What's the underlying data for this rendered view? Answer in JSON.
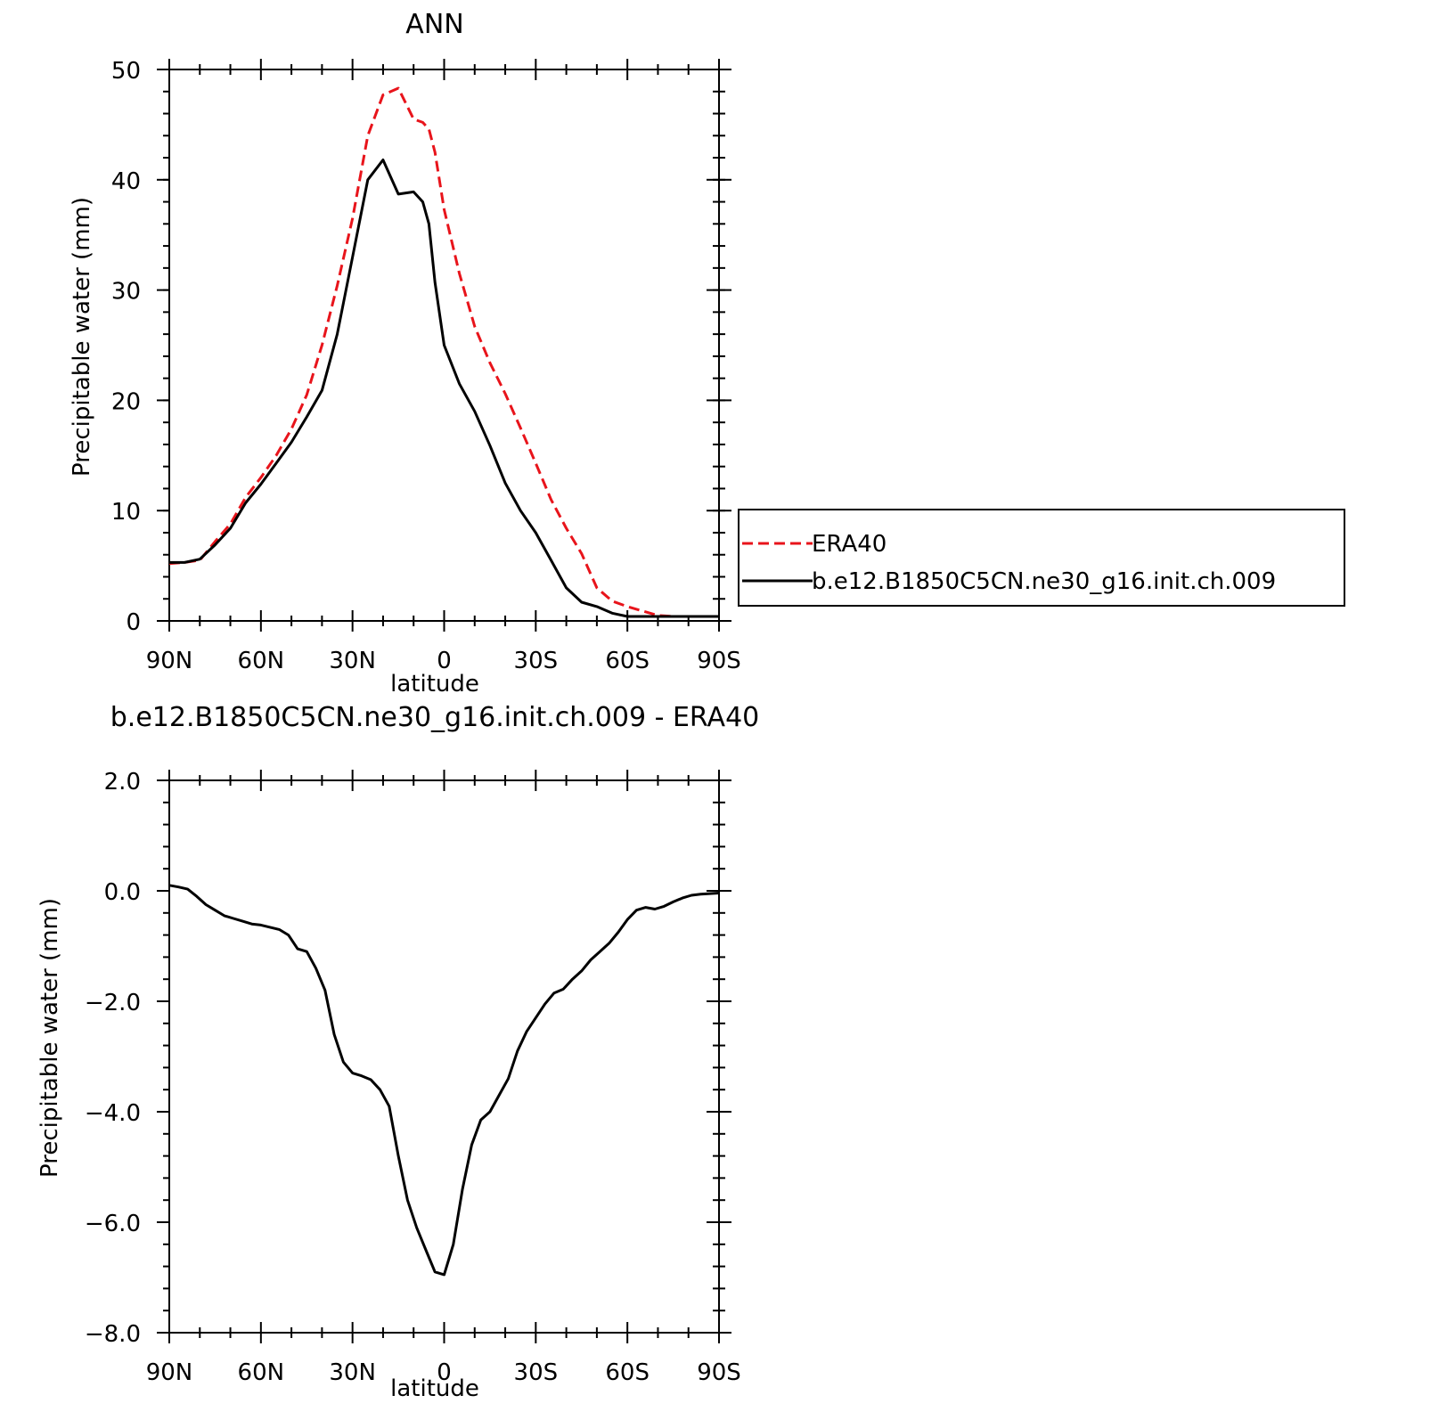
{
  "chart_data": [
    {
      "type": "line",
      "title": "ANN",
      "xlabel": "latitude",
      "ylabel": "Precipitable water (mm)",
      "xlim": [
        90,
        -90
      ],
      "ylim": [
        0,
        50
      ],
      "x_ticks": [
        90,
        60,
        30,
        0,
        -30,
        -60,
        -90
      ],
      "x_tick_labels": [
        "90N",
        "60N",
        "30N",
        "0",
        "30S",
        "60S",
        "90S"
      ],
      "y_ticks": [
        0,
        10,
        20,
        30,
        40,
        50
      ],
      "y_tick_labels": [
        "0",
        "10",
        "20",
        "30",
        "40",
        "50"
      ],
      "legend_placement": "right-outside",
      "grid": false,
      "x": [
        90,
        85,
        80,
        75,
        70,
        65,
        60,
        55,
        50,
        45,
        40,
        35,
        30,
        25,
        20,
        15,
        10,
        7,
        5,
        3,
        0,
        -5,
        -10,
        -15,
        -20,
        -25,
        -30,
        -35,
        -40,
        -45,
        -50,
        -55,
        -60,
        -65,
        -70,
        -75,
        -80,
        -85,
        -90
      ],
      "series": [
        {
          "name": "ERA40",
          "color": "#e8141b",
          "dash": "dashed",
          "values": [
            5.2,
            5.3,
            5.5,
            7.2,
            8.8,
            11.2,
            13.0,
            15.0,
            17.4,
            20.5,
            25.0,
            30.4,
            36.5,
            44.0,
            47.7,
            48.3,
            45.5,
            45.2,
            44.6,
            42.5,
            37.3,
            31.5,
            26.7,
            23.4,
            20.6,
            17.5,
            14.3,
            11.0,
            8.4,
            6.1,
            3.0,
            1.8,
            1.3,
            0.9,
            0.5,
            0.4,
            0.4,
            0.4,
            0.4
          ]
        },
        {
          "name": "b.e12.B1850C5CN.ne30_g16.init.ch.009",
          "color": "#000000",
          "dash": "solid",
          "values": [
            5.3,
            5.3,
            5.6,
            6.9,
            8.4,
            10.7,
            12.4,
            14.3,
            16.2,
            18.5,
            20.9,
            26.0,
            33.0,
            40.0,
            41.8,
            38.7,
            38.9,
            38.0,
            36.0,
            30.7,
            25.0,
            21.5,
            19.0,
            15.9,
            12.5,
            10.0,
            8.0,
            5.5,
            3.0,
            1.7,
            1.3,
            0.7,
            0.4,
            0.4,
            0.4,
            0.4,
            0.4,
            0.4,
            0.4
          ]
        }
      ]
    },
    {
      "type": "line",
      "title": "b.e12.B1850C5CN.ne30_g16.init.ch.009 - ERA40",
      "xlabel": "latitude",
      "ylabel": "Precipitable water (mm)",
      "xlim": [
        90,
        -90
      ],
      "ylim": [
        -8,
        2
      ],
      "x_ticks": [
        90,
        60,
        30,
        0,
        -30,
        -60,
        -90
      ],
      "x_tick_labels": [
        "90N",
        "60N",
        "30N",
        "0",
        "30S",
        "60S",
        "90S"
      ],
      "y_ticks": [
        2,
        0,
        -2,
        -4,
        -6,
        -8
      ],
      "y_tick_labels": [
        "2.0",
        "0.0",
        "−2.0",
        "−4.0",
        "−6.0",
        "−8.0"
      ],
      "grid": false,
      "x": [
        90,
        87,
        84,
        81,
        78,
        75,
        72,
        69,
        66,
        63,
        60,
        57,
        54,
        51,
        48,
        45,
        42,
        39,
        36,
        33,
        30,
        27,
        24,
        21,
        18,
        15,
        12,
        9,
        6,
        3,
        0,
        -3,
        -6,
        -9,
        -12,
        -15,
        -18,
        -21,
        -24,
        -27,
        -30,
        -33,
        -36,
        -39,
        -42,
        -45,
        -48,
        -51,
        -54,
        -57,
        -60,
        -63,
        -66,
        -69,
        -72,
        -75,
        -78,
        -81,
        -84,
        -87,
        -90
      ],
      "series": [
        {
          "name": "",
          "color": "#000000",
          "dash": "solid",
          "values": [
            0.1,
            0.07,
            0.03,
            -0.1,
            -0.25,
            -0.35,
            -0.45,
            -0.5,
            -0.55,
            -0.6,
            -0.62,
            -0.66,
            -0.7,
            -0.8,
            -1.05,
            -1.1,
            -1.4,
            -1.8,
            -2.6,
            -3.1,
            -3.3,
            -3.35,
            -3.42,
            -3.6,
            -3.9,
            -4.8,
            -5.6,
            -6.1,
            -6.5,
            -6.9,
            -6.95,
            -6.4,
            -5.4,
            -4.6,
            -4.15,
            -4.0,
            -3.7,
            -3.4,
            -2.9,
            -2.55,
            -2.3,
            -2.05,
            -1.85,
            -1.78,
            -1.6,
            -1.45,
            -1.25,
            -1.1,
            -0.95,
            -0.75,
            -0.52,
            -0.35,
            -0.3,
            -0.33,
            -0.28,
            -0.2,
            -0.13,
            -0.08,
            -0.06,
            -0.05,
            -0.04
          ]
        }
      ]
    }
  ]
}
